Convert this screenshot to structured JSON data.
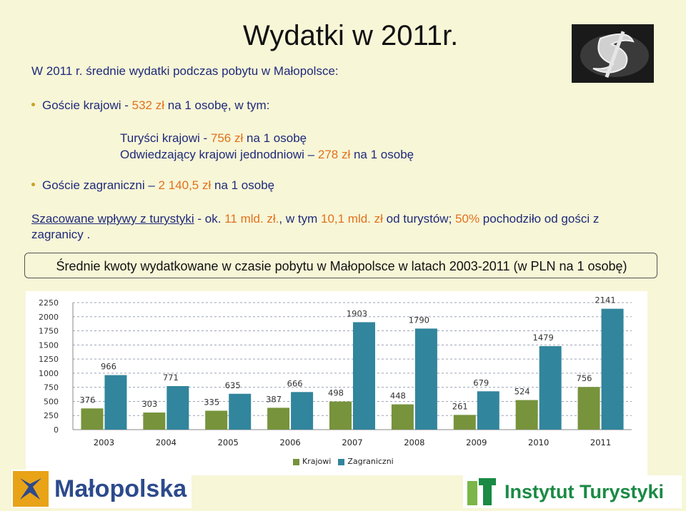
{
  "header": {
    "title": "Wydatki w 2011r.",
    "intro": "W 2011 r. średnie wydatki podczas pobytu w Małopolsce:"
  },
  "bullets": {
    "domestic": {
      "label": "Goście krajowi - ",
      "value": "532 zł",
      "rest": " na 1 osobę, w tym:"
    },
    "tourists": {
      "label": "Turyści krajowi - ",
      "value": "756 zł",
      "rest": " na 1 osobę"
    },
    "daytrippers": {
      "label": "Odwiedzający krajowi jednodniowi – ",
      "value": "278 zł",
      "rest": " na 1 osobę"
    },
    "foreign": {
      "label": "Goście zagraniczni – ",
      "value": "2 140,5 zł",
      "rest": " na 1 osobę"
    }
  },
  "revenue": {
    "label": "Szacowane wpływy z turystyki",
    "dash": " - ok. ",
    "total": "11 mld. zł.",
    "mid": ", w tym ",
    "tourists": "10,1 mld. zł",
    "mid2": " od turystów; ",
    "share": "50%",
    "rest": " pochodziło od gości z zagranicy ."
  },
  "chart_title": "Średnie kwoty wydatkowane w czasie pobytu w Małopolsce w latach 2003-2011 (w PLN na 1 osobę)",
  "chart_data": {
    "type": "bar",
    "categories": [
      "2003",
      "2004",
      "2005",
      "2006",
      "2007",
      "2008",
      "2009",
      "2010",
      "2011"
    ],
    "series": [
      {
        "name": "Krajowi",
        "color": "#77933c",
        "values": [
          376,
          303,
          335,
          387,
          498,
          448,
          261,
          524,
          756
        ]
      },
      {
        "name": "Zagraniczni",
        "color": "#31859c",
        "values": [
          966,
          771,
          635,
          666,
          1903,
          1790,
          679,
          1479,
          2141
        ]
      }
    ],
    "yticks": [
      "0",
      "250",
      "500",
      "750",
      "1000",
      "1250",
      "1500",
      "1750",
      "2000",
      "2250"
    ],
    "ylim": [
      0,
      2250
    ],
    "grid": true,
    "legend": "bottom-center"
  },
  "footer": {
    "left_logo": "Małopolska",
    "right_logo": "Instytut Turystyki"
  },
  "icons": {
    "money": "dollar-sign-icon"
  }
}
